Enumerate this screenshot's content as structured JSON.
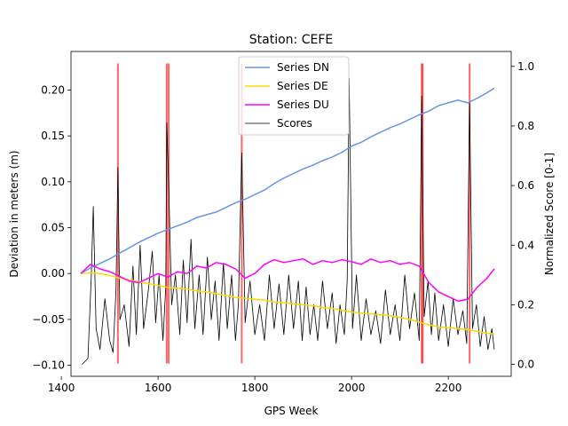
{
  "chart_data": {
    "type": "line",
    "title": "Station: CEFE",
    "xlabel": "GPS Week",
    "ylabel": "Deviation in meters (m)",
    "y2label": "Normalized Score [0-1]",
    "xlim": [
      1420,
      2330
    ],
    "ylim": [
      -0.112,
      0.242
    ],
    "y2lim": [
      -0.04,
      1.05
    ],
    "xticks": [
      1400,
      1600,
      1800,
      2000,
      2200
    ],
    "yticks": [
      -0.1,
      -0.05,
      0.0,
      0.05,
      0.1,
      0.15,
      0.2
    ],
    "y2ticks": [
      0.0,
      0.2,
      0.4,
      0.6,
      0.8,
      1.0
    ],
    "xtick_labels": [
      "1400",
      "1600",
      "1800",
      "2000",
      "2200"
    ],
    "ytick_labels": [
      "−0.10",
      "−0.05",
      "0.00",
      "0.05",
      "0.10",
      "0.15",
      "0.20"
    ],
    "y2tick_labels": [
      "0.0",
      "0.2",
      "0.4",
      "0.6",
      "0.8",
      "1.0"
    ],
    "grid": false,
    "legend_position": "top-center",
    "event_lines": {
      "color": "#ff0000",
      "x": [
        1517,
        1618,
        1622,
        1773,
        2145,
        2147,
        2244
      ],
      "y_range": [
        -0.098,
        0.229
      ]
    },
    "series": [
      {
        "name": "Series DN",
        "axis": "left",
        "color": "#6495ed",
        "x": [
          1440,
          1460,
          1480,
          1500,
          1520,
          1540,
          1560,
          1580,
          1600,
          1620,
          1640,
          1660,
          1680,
          1700,
          1720,
          1740,
          1760,
          1780,
          1800,
          1820,
          1840,
          1860,
          1880,
          1900,
          1920,
          1940,
          1960,
          1980,
          2000,
          2020,
          2040,
          2060,
          2080,
          2100,
          2120,
          2140,
          2160,
          2180,
          2200,
          2220,
          2240,
          2260,
          2280,
          2295
        ],
        "y": [
          0.0,
          0.006,
          0.011,
          0.016,
          0.022,
          0.028,
          0.034,
          0.039,
          0.044,
          0.048,
          0.052,
          0.056,
          0.061,
          0.064,
          0.067,
          0.072,
          0.077,
          0.081,
          0.086,
          0.091,
          0.098,
          0.104,
          0.109,
          0.114,
          0.118,
          0.123,
          0.127,
          0.132,
          0.139,
          0.143,
          0.149,
          0.154,
          0.159,
          0.163,
          0.168,
          0.173,
          0.177,
          0.183,
          0.186,
          0.189,
          0.186,
          0.191,
          0.197,
          0.202
        ]
      },
      {
        "name": "Series DE",
        "axis": "left",
        "color": "#ffd700",
        "x": [
          1440,
          1460,
          1480,
          1500,
          1520,
          1540,
          1560,
          1580,
          1600,
          1620,
          1640,
          1660,
          1680,
          1700,
          1720,
          1740,
          1760,
          1780,
          1800,
          1820,
          1840,
          1860,
          1880,
          1900,
          1920,
          1940,
          1960,
          1980,
          2000,
          2020,
          2040,
          2060,
          2080,
          2100,
          2120,
          2140,
          2160,
          2180,
          2200,
          2220,
          2240,
          2260,
          2280,
          2295
        ],
        "y": [
          0.0,
          0.001,
          0.0,
          -0.002,
          -0.005,
          -0.007,
          -0.009,
          -0.011,
          -0.013,
          -0.015,
          -0.016,
          -0.017,
          -0.019,
          -0.02,
          -0.022,
          -0.024,
          -0.026,
          -0.027,
          -0.028,
          -0.029,
          -0.031,
          -0.032,
          -0.033,
          -0.034,
          -0.035,
          -0.037,
          -0.038,
          -0.04,
          -0.042,
          -0.043,
          -0.044,
          -0.045,
          -0.046,
          -0.048,
          -0.05,
          -0.053,
          -0.056,
          -0.058,
          -0.059,
          -0.06,
          -0.061,
          -0.063,
          -0.065,
          -0.066
        ]
      },
      {
        "name": "Series DU",
        "axis": "left",
        "color": "#ff00ff",
        "x": [
          1440,
          1460,
          1480,
          1500,
          1520,
          1540,
          1560,
          1580,
          1600,
          1620,
          1640,
          1660,
          1680,
          1700,
          1720,
          1740,
          1760,
          1780,
          1800,
          1820,
          1840,
          1860,
          1880,
          1900,
          1920,
          1940,
          1960,
          1980,
          2000,
          2020,
          2040,
          2060,
          2080,
          2100,
          2120,
          2140,
          2160,
          2180,
          2200,
          2220,
          2240,
          2260,
          2280,
          2295
        ],
        "y": [
          0.0,
          0.01,
          0.005,
          0.002,
          -0.003,
          -0.008,
          -0.01,
          -0.005,
          0.0,
          -0.004,
          0.002,
          0.0,
          0.008,
          0.006,
          0.012,
          0.01,
          0.005,
          -0.005,
          0.0,
          0.01,
          0.015,
          0.012,
          0.014,
          0.016,
          0.01,
          0.014,
          0.012,
          0.015,
          0.013,
          0.01,
          0.016,
          0.012,
          0.014,
          0.01,
          0.012,
          0.008,
          -0.01,
          -0.02,
          -0.025,
          -0.03,
          -0.028,
          -0.015,
          -0.005,
          0.005
        ]
      },
      {
        "name": "Scores",
        "axis": "right",
        "color": "#000000",
        "x": [
          1443,
          1455,
          1462,
          1466,
          1472,
          1480,
          1490,
          1500,
          1507,
          1513,
          1517,
          1521,
          1530,
          1540,
          1548,
          1555,
          1563,
          1570,
          1580,
          1588,
          1595,
          1602,
          1610,
          1616,
          1618,
          1622,
          1628,
          1636,
          1645,
          1652,
          1660,
          1668,
          1676,
          1685,
          1693,
          1702,
          1710,
          1718,
          1726,
          1735,
          1743,
          1752,
          1760,
          1766,
          1773,
          1780,
          1790,
          1800,
          1810,
          1820,
          1830,
          1840,
          1850,
          1860,
          1870,
          1880,
          1890,
          1898,
          1906,
          1914,
          1922,
          1930,
          1940,
          1950,
          1960,
          1968,
          1976,
          1985,
          1991,
          1995,
          2002,
          2010,
          2020,
          2030,
          2040,
          2050,
          2060,
          2070,
          2080,
          2090,
          2100,
          2110,
          2120,
          2130,
          2140,
          2145,
          2150,
          2158,
          2165,
          2172,
          2180,
          2190,
          2200,
          2210,
          2220,
          2230,
          2238,
          2244,
          2250,
          2258,
          2266,
          2274,
          2282,
          2290,
          2295
        ],
        "y": [
          0.0,
          0.02,
          0.3,
          0.53,
          0.12,
          0.05,
          0.22,
          0.08,
          0.04,
          0.25,
          0.66,
          0.15,
          0.2,
          0.06,
          0.33,
          0.1,
          0.4,
          0.12,
          0.25,
          0.38,
          0.14,
          0.3,
          0.08,
          0.26,
          0.81,
          0.6,
          0.2,
          0.3,
          0.1,
          0.35,
          0.14,
          0.42,
          0.12,
          0.3,
          0.1,
          0.36,
          0.15,
          0.28,
          0.08,
          0.34,
          0.12,
          0.3,
          0.08,
          0.2,
          0.71,
          0.14,
          0.28,
          0.1,
          0.2,
          0.08,
          0.3,
          0.12,
          0.27,
          0.1,
          0.3,
          0.12,
          0.28,
          0.08,
          0.26,
          0.1,
          0.2,
          0.08,
          0.28,
          0.12,
          0.24,
          0.07,
          0.2,
          0.1,
          0.28,
          0.96,
          0.12,
          0.3,
          0.08,
          0.22,
          0.1,
          0.18,
          0.07,
          0.25,
          0.1,
          0.2,
          0.08,
          0.3,
          0.12,
          0.24,
          0.08,
          0.9,
          0.16,
          0.28,
          0.1,
          0.24,
          0.08,
          0.2,
          0.06,
          0.22,
          0.1,
          0.18,
          0.07,
          0.88,
          0.12,
          0.2,
          0.06,
          0.16,
          0.05,
          0.12,
          0.05
        ]
      }
    ]
  }
}
